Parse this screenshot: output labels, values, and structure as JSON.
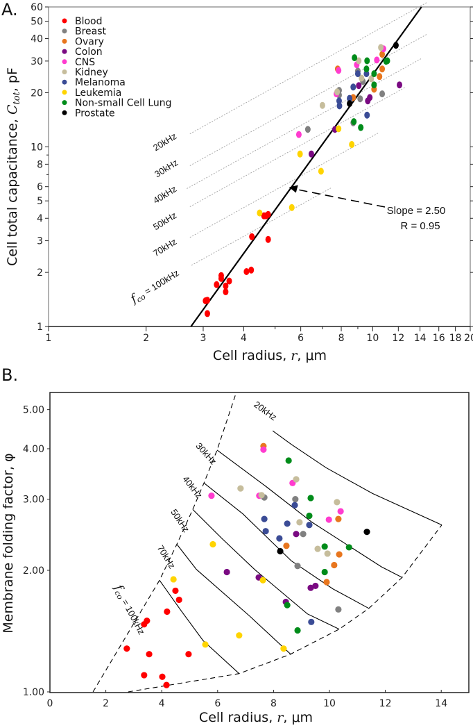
{
  "panels": {
    "a_label": "A.",
    "b_label": "B."
  },
  "legend": [
    {
      "name": "Blood",
      "color": "#ff0000"
    },
    {
      "name": "Breast",
      "color": "#808080"
    },
    {
      "name": "Ovary",
      "color": "#e8761e"
    },
    {
      "name": "Colon",
      "color": "#7a0a82"
    },
    {
      "name": "CNS",
      "color": "#ff3ccf"
    },
    {
      "name": "Kidney",
      "color": "#c6bd9c"
    },
    {
      "name": "Melanoma",
      "color": "#3b4c96"
    },
    {
      "name": "Leukemia",
      "color": "#ffd400"
    },
    {
      "name": "Non-small Cell Lung",
      "color": "#008c1a"
    },
    {
      "name": "Prostate",
      "color": "#000000"
    }
  ],
  "chart_data": [
    {
      "type": "scatter",
      "panel": "A",
      "xscale": "log",
      "yscale": "log",
      "xlim": [
        1,
        20
      ],
      "ylim": [
        1,
        60
      ],
      "xlabel": {
        "pre": "Cell radius, ",
        "var": "r",
        "post": ", μm"
      },
      "ylabel": {
        "pre": "Cell total capacitance, ",
        "var": "C",
        "sub": "tot",
        "post": ", pF"
      },
      "xticks": [
        "1",
        "2",
        "3",
        "4",
        "6",
        "8",
        "10",
        "12",
        "14",
        "16",
        "18",
        "20"
      ],
      "xminor": [
        5,
        7,
        9
      ],
      "yticks": [
        "1",
        "2",
        "3",
        "4",
        "5",
        "6",
        "8",
        "10",
        "20",
        "30",
        "40",
        "50",
        "60"
      ],
      "yminor": [
        7,
        9
      ],
      "legend_position": "top-left",
      "fit": {
        "slope": 2.5,
        "coefficient": 0.0797,
        "text": [
          "Slope = 2.50",
          "R = 0.95"
        ],
        "arrow_to": [
          5.52,
          5.96
        ]
      },
      "iso_lines": [
        {
          "label": "20kHz",
          "r_start": 2.73,
          "C_start": 11.8,
          "r_end": 14.7
        },
        {
          "label": "30kHz",
          "r_start": 2.73,
          "C_start": 7.85,
          "r_end": 14.7
        },
        {
          "label": "40kHz",
          "r_start": 2.67,
          "C_start": 5.85,
          "r_end": 14.2
        },
        {
          "label": "50kHz",
          "r_start": 2.73,
          "C_start": 4.64,
          "r_end": 12.6
        },
        {
          "label": "70kHz",
          "r_start": 2.73,
          "C_start": 3.13,
          "r_end": 10.4
        },
        {
          "label": "100kHz",
          "symbol": "f",
          "sub": "co",
          "eq": " = ",
          "r_start": 2.76,
          "C_start": 2.19,
          "r_end": 7.43
        }
      ],
      "series": [
        {
          "name": "Blood",
          "points": [
            [
              3.05,
              1.39
            ],
            [
              3.09,
              1.4
            ],
            [
              3.09,
              1.18
            ],
            [
              3.3,
              1.71
            ],
            [
              3.41,
              1.92
            ],
            [
              3.41,
              1.85
            ],
            [
              3.52,
              1.68
            ],
            [
              3.52,
              1.56
            ],
            [
              3.61,
              1.79
            ],
            [
              4.08,
              2.02
            ],
            [
              4.22,
              2.06
            ],
            [
              4.24,
              3.16
            ],
            [
              4.62,
              4.13
            ],
            [
              4.69,
              4.13
            ],
            [
              4.76,
              4.2
            ],
            [
              4.76,
              3.05
            ]
          ]
        },
        {
          "name": "Breast",
          "points": [
            [
              6.31,
              12.5
            ],
            [
              7.88,
              20.6
            ],
            [
              7.88,
              19.4
            ],
            [
              9.0,
              26.4
            ],
            [
              9.15,
              18.5
            ],
            [
              9.33,
              23.1
            ],
            [
              10.7,
              19.7
            ],
            [
              8.71,
              13.6
            ]
          ]
        },
        {
          "name": "Ovary",
          "points": [
            [
              7.8,
              27.1
            ],
            [
              8.71,
              18.8
            ],
            [
              10.1,
              20.9
            ],
            [
              10.5,
              24.6
            ],
            [
              10.7,
              27.1
            ],
            [
              10.7,
              32.7
            ]
          ]
        },
        {
          "name": "Colon",
          "points": [
            [
              6.47,
              9.12
            ],
            [
              7.65,
              12.5
            ],
            [
              9.06,
              21.9
            ],
            [
              9.66,
              18.0
            ],
            [
              9.8,
              18.8
            ],
            [
              12.1,
              22.1
            ]
          ]
        },
        {
          "name": "CNS",
          "points": [
            [
              5.92,
              11.7
            ],
            [
              7.73,
              19.7
            ],
            [
              7.85,
              26.6
            ],
            [
              8.93,
              28.6
            ],
            [
              10.3,
              30.4
            ],
            [
              10.8,
              35.1
            ]
          ]
        },
        {
          "name": "Kidney",
          "points": [
            [
              7.0,
              17.0
            ],
            [
              7.77,
              20.2
            ],
            [
              9.06,
              30.1
            ],
            [
              9.24,
              24.1
            ],
            [
              9.9,
              23.9
            ],
            [
              10.6,
              35.7
            ]
          ]
        },
        {
          "name": "Melanoma",
          "points": [
            [
              9.0,
              25.5
            ],
            [
              9.57,
              25.5
            ],
            [
              8.71,
              21.5
            ],
            [
              7.88,
              18.0
            ],
            [
              7.9,
              16.9
            ],
            [
              8.49,
              18.6
            ],
            [
              9.61,
              15.0
            ]
          ]
        },
        {
          "name": "Leukemia",
          "points": [
            [
              4.48,
              4.28
            ],
            [
              5.63,
              4.59
            ],
            [
              6.93,
              7.31
            ],
            [
              5.97,
              9.12
            ],
            [
              7.85,
              12.6
            ],
            [
              8.62,
              10.3
            ]
          ]
        },
        {
          "name": "Non-small Cell Lung",
          "points": [
            [
              8.79,
              31.3
            ],
            [
              9.61,
              30.1
            ],
            [
              9.57,
              27.1
            ],
            [
              10.1,
              25.5
            ],
            [
              10.1,
              22.1
            ],
            [
              11.0,
              29.9
            ],
            [
              11.1,
              30.1
            ],
            [
              8.75,
              13.8
            ],
            [
              9.19,
              12.8
            ]
          ]
        },
        {
          "name": "Prostate",
          "points": [
            [
              8.49,
              17.4
            ],
            [
              11.8,
              36.7
            ]
          ]
        }
      ]
    },
    {
      "type": "scatter",
      "panel": "B",
      "xscale": "linear",
      "yscale": "log",
      "xlim": [
        0,
        15
      ],
      "ylim": [
        1,
        5.6
      ],
      "xlabel": {
        "pre": "Cell radius, ",
        "var": "r",
        "post": ", μm"
      },
      "ylabel": {
        "pre": "Membrane folding factor, ",
        "var": "φ"
      },
      "xticks": [
        "0",
        "2",
        "4",
        "6",
        "8",
        "10",
        "12",
        "14"
      ],
      "yticks": [
        "1.00",
        "2.00",
        "3.00",
        "4.00",
        "5.00"
      ],
      "boundaries": [
        {
          "points": [
            [
              1.54,
              1.0
            ],
            [
              3.92,
              1.89
            ],
            [
              4.54,
              2.32
            ],
            [
              5.11,
              2.83
            ],
            [
              5.51,
              3.29
            ],
            [
              5.98,
              3.97
            ],
            [
              6.65,
              5.47
            ]
          ]
        },
        {
          "points": [
            [
              2.8,
              1.0
            ],
            [
              6.77,
              1.11
            ],
            [
              8.61,
              1.24
            ],
            [
              10.35,
              1.43
            ],
            [
              11.41,
              1.61
            ],
            [
              12.6,
              1.92
            ],
            [
              14.02,
              2.59
            ]
          ]
        }
      ],
      "iso_lines": [
        {
          "label": "20kHz",
          "points": [
            [
              7.97,
              4.43
            ],
            [
              8.64,
              4.1
            ],
            [
              9.88,
              3.59
            ],
            [
              11.54,
              3.1
            ],
            [
              14.02,
              2.59
            ]
          ]
        },
        {
          "label": "30kHz",
          "points": [
            [
              5.98,
              3.97
            ],
            [
              7.72,
              3.23
            ],
            [
              9.38,
              2.63
            ],
            [
              11.86,
              2.04
            ],
            [
              12.6,
              1.92
            ]
          ]
        },
        {
          "label": "40kHz",
          "points": [
            [
              5.51,
              3.29
            ],
            [
              6.9,
              2.76
            ],
            [
              8.64,
              2.11
            ],
            [
              10.12,
              1.8
            ],
            [
              11.41,
              1.61
            ]
          ]
        },
        {
          "label": "50kHz",
          "points": [
            [
              5.11,
              2.83
            ],
            [
              6.15,
              2.4
            ],
            [
              7.32,
              2.01
            ],
            [
              9.21,
              1.56
            ],
            [
              10.35,
              1.43
            ]
          ]
        },
        {
          "label": "70kHz",
          "points": [
            [
              4.54,
              2.32
            ],
            [
              5.24,
              2.01
            ],
            [
              7.15,
              1.54
            ],
            [
              8.61,
              1.24
            ]
          ]
        },
        {
          "label": "100kHz",
          "symbol": "f",
          "sub": "co",
          "eq": " = ",
          "points": [
            [
              3.92,
              1.89
            ],
            [
              4.66,
              1.6
            ],
            [
              5.48,
              1.34
            ],
            [
              6.77,
              1.11
            ]
          ]
        }
      ],
      "series": [
        {
          "name": "Blood",
          "points": [
            [
              2.75,
              1.28
            ],
            [
              3.37,
              1.47
            ],
            [
              3.47,
              1.5
            ],
            [
              3.55,
              1.24
            ],
            [
              3.37,
              1.1
            ],
            [
              4.02,
              1.09
            ],
            [
              4.17,
              1.04
            ],
            [
              4.19,
              1.58
            ],
            [
              4.49,
              1.78
            ],
            [
              4.62,
              1.69
            ],
            [
              4.96,
              1.24
            ]
          ]
        },
        {
          "name": "Breast",
          "points": [
            [
              7.67,
              3.03
            ],
            [
              8.78,
              3.0
            ],
            [
              9.06,
              2.46
            ],
            [
              8.86,
              2.05
            ],
            [
              10.32,
              1.6
            ]
          ]
        },
        {
          "name": "Ovary",
          "points": [
            [
              7.64,
              4.06
            ],
            [
              10.32,
              2.68
            ],
            [
              8.46,
              2.3
            ],
            [
              10.17,
              2.06
            ],
            [
              9.9,
              1.87
            ],
            [
              10.35,
              2.19
            ]
          ]
        },
        {
          "name": "Colon",
          "points": [
            [
              6.33,
              1.98
            ],
            [
              7.47,
              1.92
            ],
            [
              9.33,
              1.81
            ],
            [
              9.5,
              1.83
            ],
            [
              8.44,
              1.67
            ],
            [
              8.81,
              2.46
            ]
          ]
        },
        {
          "name": "CNS",
          "points": [
            [
              7.64,
              3.98
            ],
            [
              5.78,
              3.06
            ],
            [
              7.49,
              3.06
            ],
            [
              8.68,
              3.29
            ],
            [
              10.4,
              2.8
            ],
            [
              9.98,
              2.67
            ]
          ]
        },
        {
          "name": "Kidney",
          "points": [
            [
              6.82,
              3.19
            ],
            [
              7.57,
              3.07
            ],
            [
              8.81,
              3.36
            ],
            [
              8.93,
              2.63
            ],
            [
              10.27,
              2.95
            ],
            [
              9.58,
              2.26
            ],
            [
              9.93,
              2.2
            ]
          ]
        },
        {
          "name": "Melanoma",
          "points": [
            [
              8.76,
              2.9
            ],
            [
              7.67,
              2.68
            ],
            [
              8.49,
              2.61
            ],
            [
              9.28,
              2.59
            ],
            [
              7.72,
              2.5
            ],
            [
              8.21,
              2.4
            ],
            [
              9.35,
              1.49
            ]
          ]
        },
        {
          "name": "Leukemia",
          "points": [
            [
              4.42,
              1.9
            ],
            [
              5.56,
              1.31
            ],
            [
              6.77,
              1.38
            ],
            [
              8.36,
              1.28
            ],
            [
              7.62,
              1.89
            ],
            [
              5.83,
              2.32
            ]
          ]
        },
        {
          "name": "Non-small Cell Lung",
          "points": [
            [
              8.49,
              1.64
            ],
            [
              8.86,
              1.42
            ],
            [
              9.83,
              1.98
            ],
            [
              8.54,
              3.74
            ],
            [
              9.33,
              3.02
            ],
            [
              9.28,
              2.73
            ],
            [
              9.83,
              2.29
            ],
            [
              10.7,
              2.28
            ]
          ]
        },
        {
          "name": "Prostate",
          "points": [
            [
              8.24,
              2.23
            ],
            [
              11.34,
              2.49
            ]
          ]
        }
      ]
    }
  ]
}
